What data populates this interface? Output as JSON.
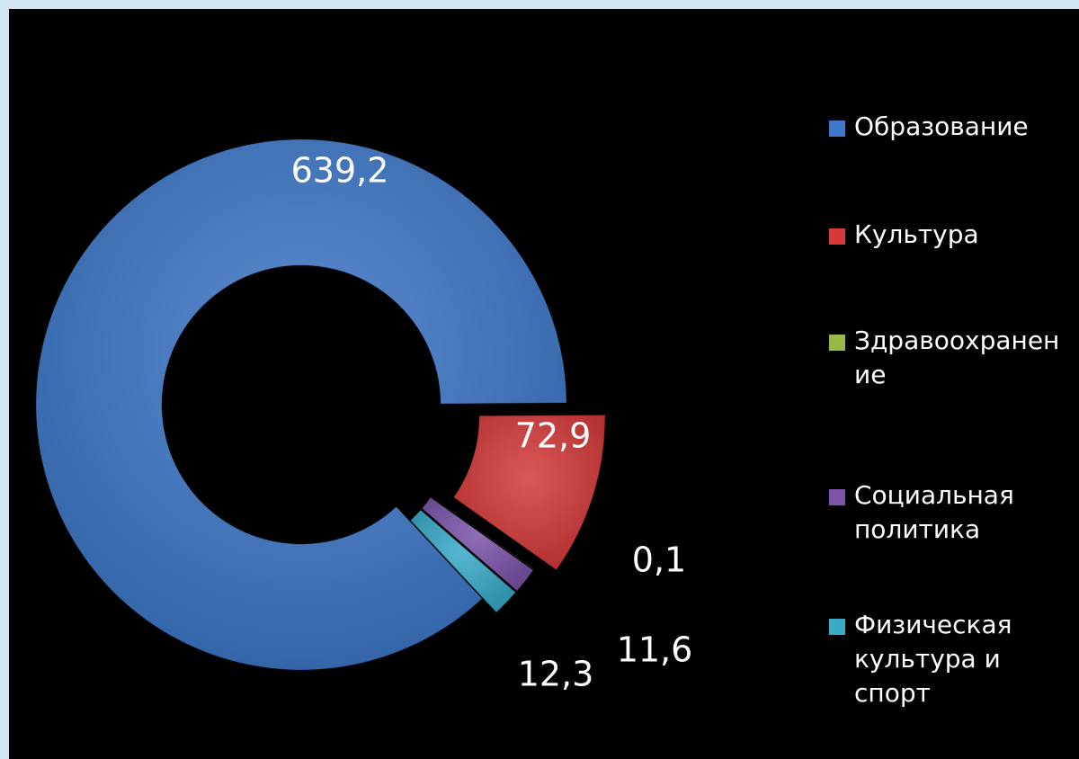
{
  "chart_data": {
    "type": "donut",
    "categories": [
      "Образование",
      "Культура",
      "Здравоохранение",
      "Социальная политика",
      "Физическая культура и спорт"
    ],
    "values": [
      639.2,
      72.9,
      0.1,
      11.6,
      12.3
    ],
    "value_labels": [
      "639,2",
      "72,9",
      "0,1",
      "11,6",
      "12,3"
    ],
    "colors": [
      "#3f78c8",
      "#d43a3a",
      "#98b94a",
      "#7b55a8",
      "#3aaac8"
    ],
    "legend": "right"
  }
}
